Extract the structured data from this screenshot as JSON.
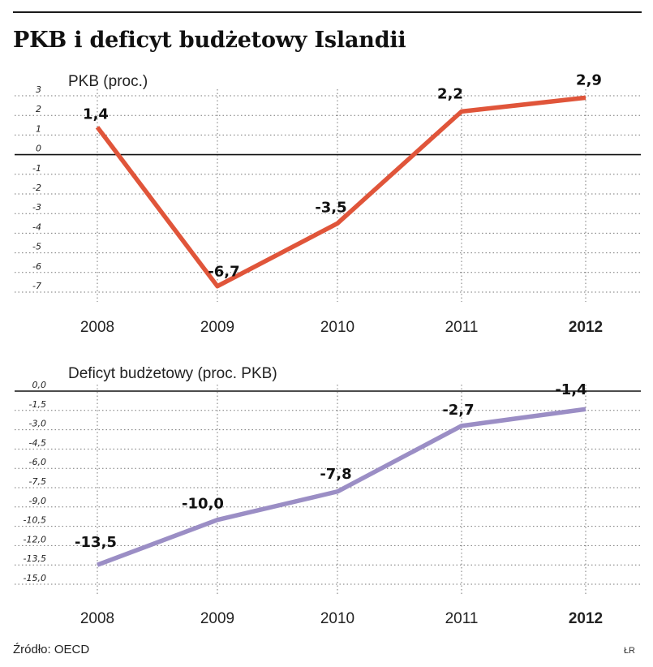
{
  "page": {
    "title": "PKB i deficyt budżetowy Islandii",
    "source": "Źródło: OECD",
    "author": "ŁR"
  },
  "chart_data": [
    {
      "type": "line",
      "subtitle": "PKB (proc.)",
      "x": [
        "2008",
        "2009",
        "2010",
        "2011",
        "2012"
      ],
      "highlight_category": "2012",
      "series": [
        {
          "values": [
            1.4,
            -6.7,
            -3.5,
            2.2,
            2.9
          ]
        }
      ],
      "data_labels": [
        "1,4",
        "-6,7",
        "-3,5",
        "2,2",
        "2,9"
      ],
      "yticks": [
        3,
        2,
        1,
        0,
        -1,
        -2,
        -3,
        -4,
        -5,
        -6,
        -7
      ],
      "ytick_labels": [
        "3",
        "2",
        "1",
        "0",
        "-1",
        "-2",
        "-3",
        "-4",
        "-5",
        "-6",
        "-7"
      ],
      "ylim": [
        -7.3,
        3.3
      ],
      "zero_line": true,
      "color": "#e0553a",
      "highlight_color": "#e0553a"
    },
    {
      "type": "line",
      "subtitle": "Deficyt budżetowy (proc. PKB)",
      "x": [
        "2008",
        "2009",
        "2010",
        "2011",
        "2012"
      ],
      "highlight_category": "2012",
      "series": [
        {
          "values": [
            -13.5,
            -10.0,
            -7.8,
            -2.7,
            -1.4
          ]
        }
      ],
      "data_labels": [
        "-13,5",
        "-10,0",
        "-7,8",
        "-2,7",
        "-1,4"
      ],
      "yticks": [
        0,
        -1.5,
        -3,
        -4.5,
        -6,
        -7.5,
        -9,
        -10.5,
        -12,
        -13.5,
        -15
      ],
      "ytick_labels": [
        "0,0",
        "-1,5",
        "-3,0",
        "-4,5",
        "-6,0",
        "-7,5",
        "-9,0",
        "-10,5",
        "-12,0",
        "-13,5",
        "-15,0"
      ],
      "ylim": [
        -16.5,
        0.3
      ],
      "zero_line": true,
      "color": "#9b8ec5",
      "highlight_color": "#9b8ec5"
    }
  ]
}
